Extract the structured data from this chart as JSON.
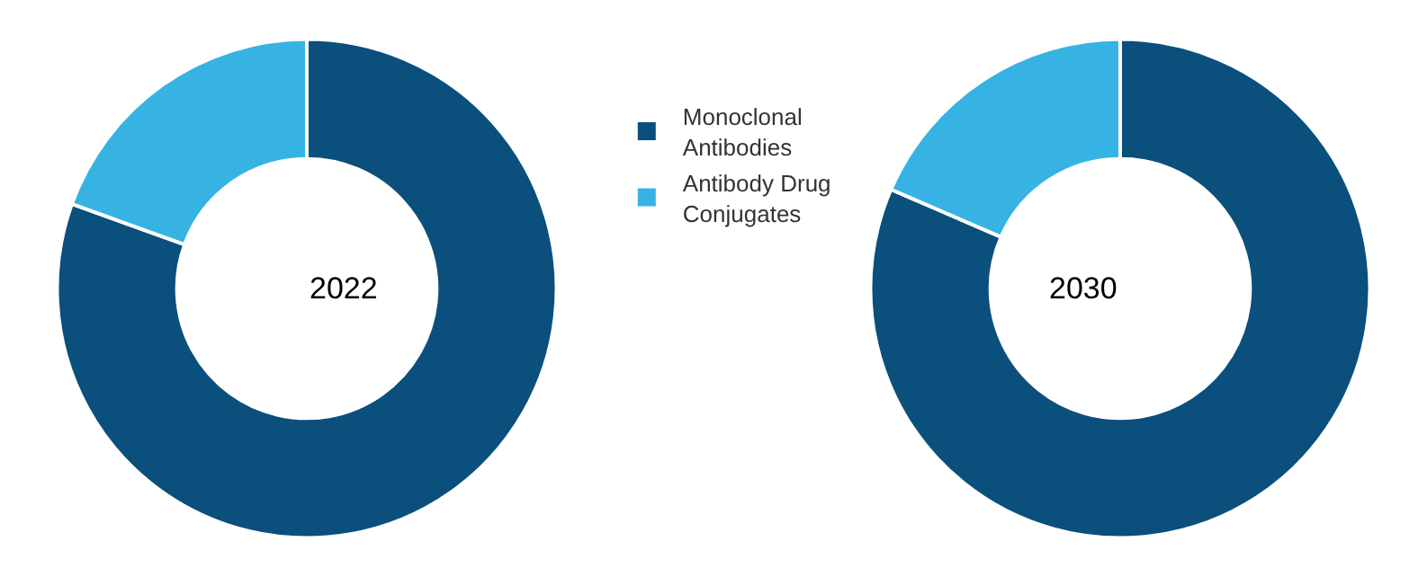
{
  "chart_data": [
    {
      "type": "donut",
      "title": "2022",
      "categories": [
        "Monoclonal Antibodies",
        "Antibody Drug Conjugates"
      ],
      "values": [
        80.5,
        19.5
      ],
      "colors": [
        "#0b4f7c",
        "#36b3e3"
      ],
      "legend": "right"
    },
    {
      "type": "donut",
      "title": "2030",
      "categories": [
        null,
        null
      ],
      "values": [
        81.5,
        18.5
      ],
      "colors": [
        "#0b4f7c",
        "#36b3e3"
      ],
      "legend": false
    }
  ]
}
